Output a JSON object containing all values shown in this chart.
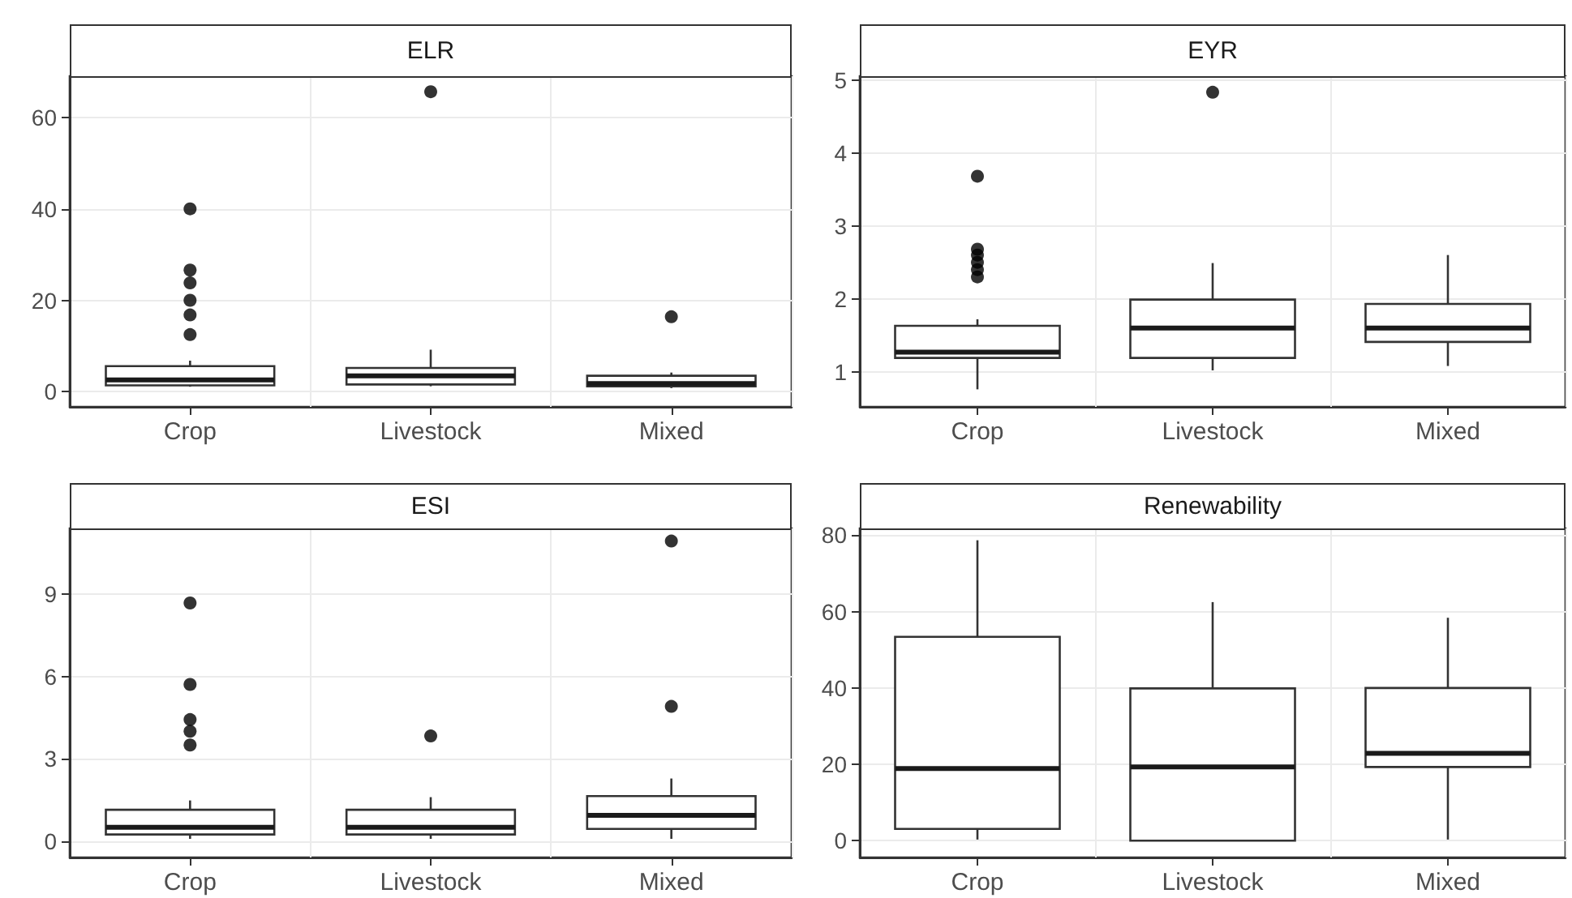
{
  "chart_data": [
    {
      "type": "box",
      "title": "ELR",
      "categories": [
        "Crop",
        "Livestock",
        "Mixed"
      ],
      "ylim": [
        -3.3,
        69
      ],
      "yticks": [
        0,
        20,
        40,
        60
      ],
      "grid": true,
      "boxes": [
        {
          "low": 1.1,
          "q1": 1.4,
          "median": 2.6,
          "q3": 5.6,
          "high": 6.8,
          "outliers": [
            12.5,
            16.8,
            20,
            23.8,
            26.6,
            40
          ]
        },
        {
          "low": 1.2,
          "q1": 1.6,
          "median": 3.5,
          "q3": 5.2,
          "high": 9.2,
          "outliers": [
            65.6
          ]
        },
        {
          "low": 0.8,
          "q1": 1.2,
          "median": 1.8,
          "q3": 3.5,
          "high": 4.2,
          "outliers": [
            16.4
          ]
        }
      ]
    },
    {
      "type": "box",
      "title": "EYR",
      "categories": [
        "Crop",
        "Livestock",
        "Mixed"
      ],
      "ylim": [
        0.52,
        5.05
      ],
      "yticks": [
        1,
        2,
        3,
        4,
        5
      ],
      "grid": true,
      "boxes": [
        {
          "low": 0.76,
          "q1": 1.19,
          "median": 1.27,
          "q3": 1.63,
          "high": 1.72,
          "outliers": [
            2.3,
            2.4,
            2.5,
            2.6,
            2.68,
            3.68
          ]
        },
        {
          "low": 1.02,
          "q1": 1.19,
          "median": 1.6,
          "q3": 1.99,
          "high": 2.49,
          "outliers": [
            4.83
          ]
        },
        {
          "low": 1.08,
          "q1": 1.41,
          "median": 1.6,
          "q3": 1.93,
          "high": 2.6
        }
      ]
    },
    {
      "type": "box",
      "title": "ESI",
      "categories": [
        "Crop",
        "Livestock",
        "Mixed"
      ],
      "ylim": [
        -0.6,
        11.4
      ],
      "yticks": [
        0,
        3,
        6,
        9
      ],
      "grid": true,
      "boxes": [
        {
          "low": 0.08,
          "q1": 0.24,
          "median": 0.5,
          "q3": 1.14,
          "high": 1.48,
          "outliers": [
            3.5,
            4,
            4.43,
            5.71,
            8.68
          ]
        },
        {
          "low": 0.08,
          "q1": 0.24,
          "median": 0.5,
          "q3": 1.14,
          "high": 1.6,
          "outliers": [
            3.83
          ]
        },
        {
          "low": 0.08,
          "q1": 0.44,
          "median": 0.94,
          "q3": 1.64,
          "high": 2.28,
          "outliers": [
            4.91,
            10.94
          ]
        }
      ]
    },
    {
      "type": "box",
      "title": "Renewability",
      "categories": [
        "Crop",
        "Livestock",
        "Mixed"
      ],
      "ylim": [
        -4.4,
        81.8
      ],
      "yticks": [
        0,
        20,
        40,
        60,
        80
      ],
      "grid": true,
      "boxes": [
        {
          "low": 0.3,
          "q1": 3.1,
          "median": 18.9,
          "q3": 53.4,
          "high": 78.7
        },
        {
          "low": 0,
          "q1": 0,
          "median": 19.3,
          "q3": 39.9,
          "high": 62.5
        },
        {
          "low": 0.3,
          "q1": 19.3,
          "median": 22.9,
          "q3": 40,
          "high": 58.4
        }
      ]
    }
  ]
}
